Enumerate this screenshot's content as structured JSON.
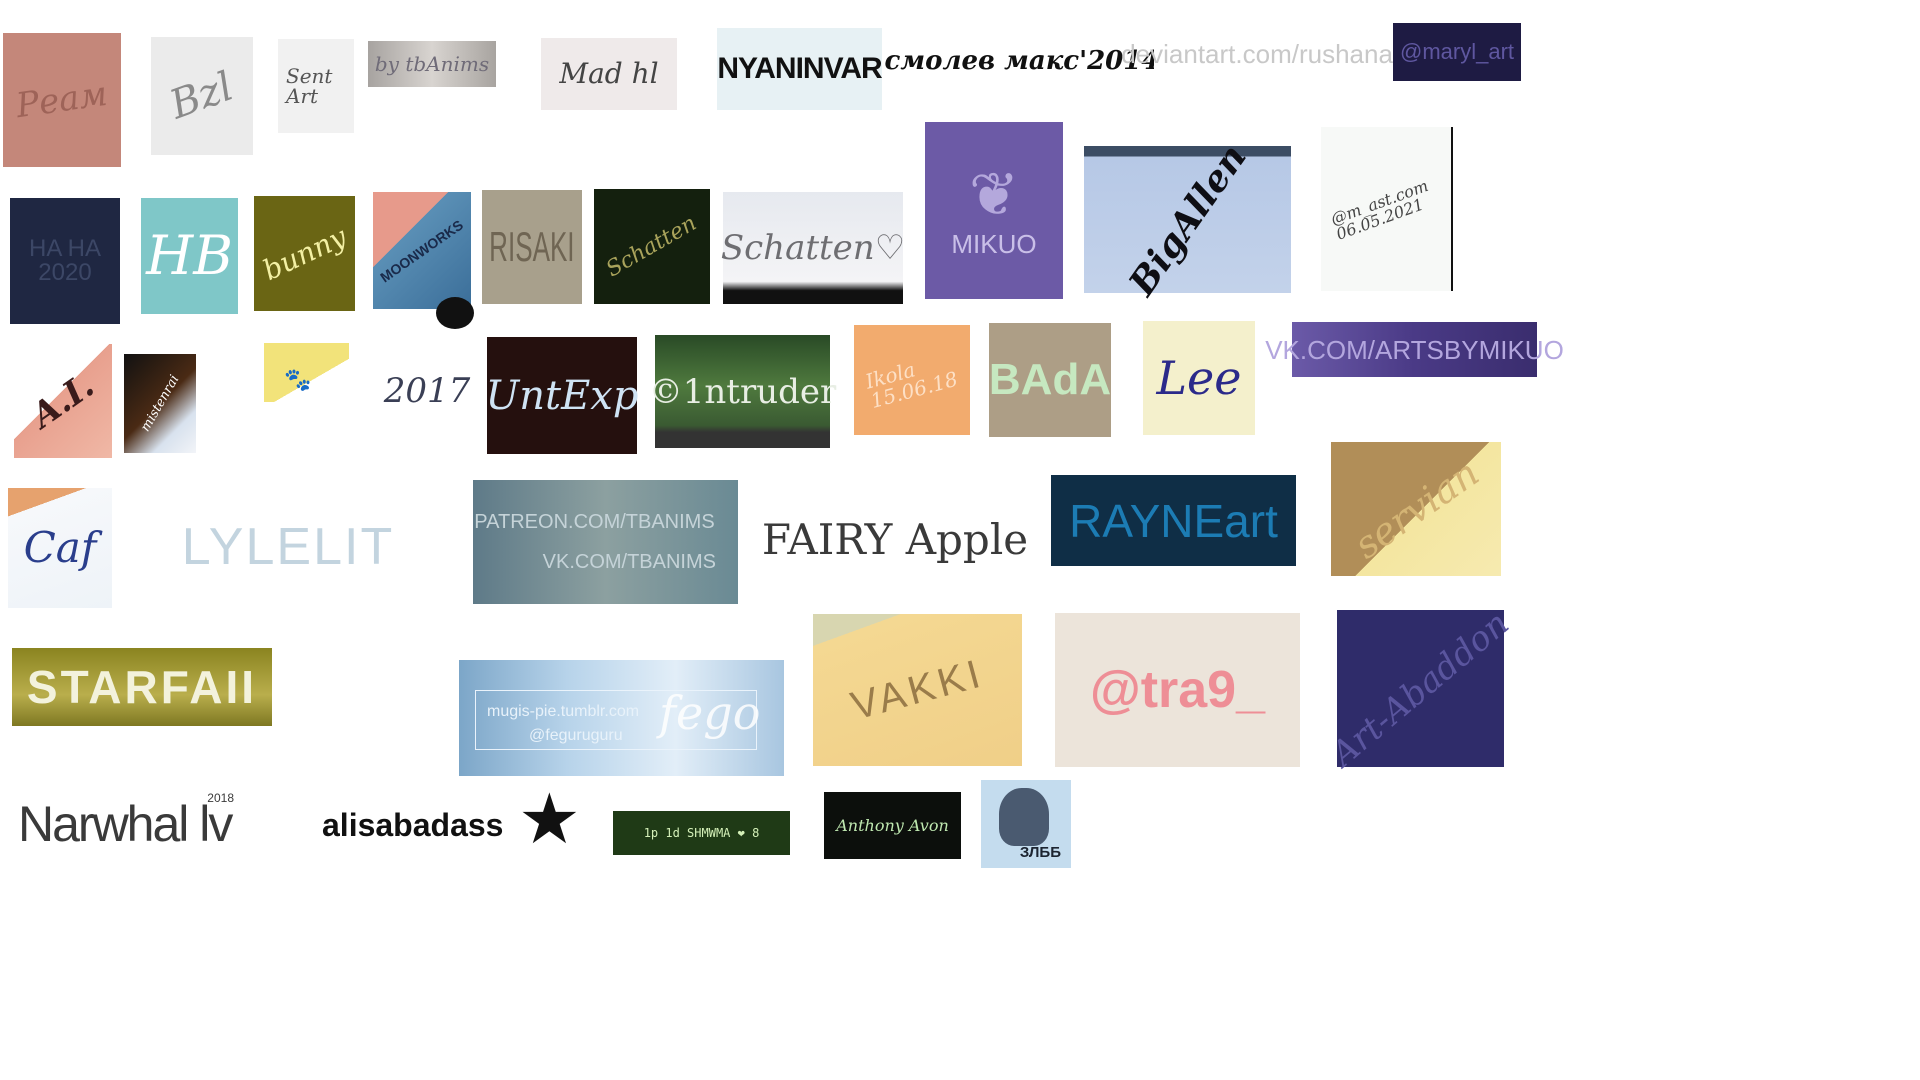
{
  "signatures": {
    "s01": "Реам",
    "s02": "Bzl",
    "s03": "Sent Art",
    "s04": "by tbAnims",
    "s05": "Mad hl",
    "s06": "NYANINVAR",
    "s07": "смолев макс'2014",
    "s08": "deviantart.com/rushanart",
    "s09": "@maryl_art",
    "s10": "HA HA 2020",
    "s11": "HB",
    "s12": "bunny",
    "s13": "MOONWORKS",
    "s14": "RISAKI",
    "s15": "Schatten",
    "s16": "Schatten♡",
    "s17": "MIKUO",
    "s18": "BigAllen",
    "s19": "@m_ast.com 06.05.2021",
    "s20": "A.I.",
    "s21": "mistenrai",
    "s22": "2017",
    "s23": "UntExp",
    "s24": "©1ntruder",
    "s25": "Ikola 15.06.18",
    "s26": "BAdA",
    "s27": "Lee",
    "s28": "VK.COM/ARTSBYMIKUO",
    "s29": "Caf",
    "s30": "LYLELIT",
    "s31a": "PATREON.COM/TBANIMS",
    "s31b": "VK.COM/TBANIMS",
    "s32": "FAIRY Apple",
    "s33": "RAYNEart",
    "s34": "servian",
    "s35": "STARFAII",
    "s36a": "mugis-pie.tumblr.com",
    "s36b": "@feguruguru",
    "s36c": "fego",
    "s37": "VAKKI",
    "s38": "@tra9_",
    "s39": "Art-Abaddon",
    "s40": "Narwhal lv",
    "s40y": "2018",
    "s41": "alisabadass",
    "s42": "1p 1d SHMWMA ❤ 8",
    "s43": "Anthony Avon",
    "s44": "ЗЛББ"
  }
}
